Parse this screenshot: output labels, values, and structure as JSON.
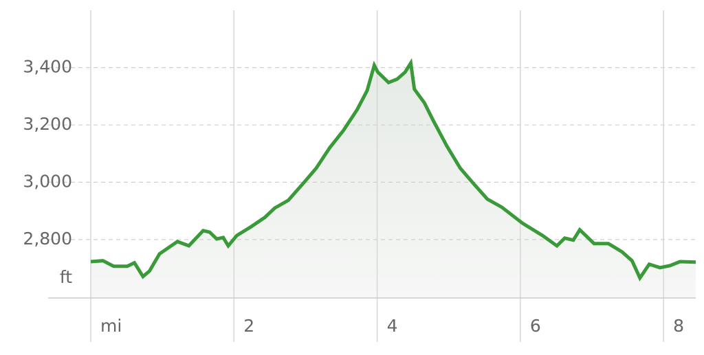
{
  "chart_data": {
    "type": "line",
    "x": [
      0,
      0.17,
      0.32,
      0.51,
      0.61,
      0.73,
      0.82,
      0.96,
      1.21,
      1.37,
      1.57,
      1.66,
      1.76,
      1.85,
      1.92,
      2.04,
      2.24,
      2.43,
      2.57,
      2.76,
      2.96,
      3.15,
      3.34,
      3.53,
      3.72,
      3.86,
      3.96,
      4.01,
      4.16,
      4.28,
      4.39,
      4.47,
      4.52,
      4.66,
      4.78,
      4.97,
      5.16,
      5.35,
      5.54,
      5.74,
      6.03,
      6.31,
      6.51,
      6.62,
      6.74,
      6.83,
      7.03,
      7.23,
      7.42,
      7.56,
      7.67,
      7.8,
      7.95,
      8.09,
      8.23,
      8.45
    ],
    "values": [
      2723,
      2726,
      2707,
      2707,
      2719,
      2671,
      2690,
      2750,
      2793,
      2778,
      2831,
      2826,
      2802,
      2807,
      2778,
      2814,
      2845,
      2877,
      2910,
      2937,
      2994,
      3049,
      3121,
      3181,
      3253,
      3320,
      3408,
      3384,
      3348,
      3360,
      3384,
      3416,
      3325,
      3277,
      3217,
      3128,
      3049,
      2994,
      2941,
      2913,
      2857,
      2814,
      2778,
      2805,
      2798,
      2834,
      2786,
      2786,
      2757,
      2726,
      2666,
      2714,
      2702,
      2709,
      2723,
      2721
    ],
    "color": "#3a9a3a",
    "xlim": [
      0,
      8.45
    ],
    "ylim": [
      2596,
      3600
    ],
    "xticks": [
      {
        "value": 0,
        "label": "mi"
      },
      2,
      4,
      6,
      8
    ],
    "yticks": [
      {
        "value": 2800,
        "label": "2,800"
      },
      {
        "value": 3000,
        "label": "3,000"
      },
      {
        "value": 3200,
        "label": "3,200"
      },
      {
        "value": 3400,
        "label": "3,400"
      }
    ],
    "y_unit": "ft",
    "grid": true
  }
}
